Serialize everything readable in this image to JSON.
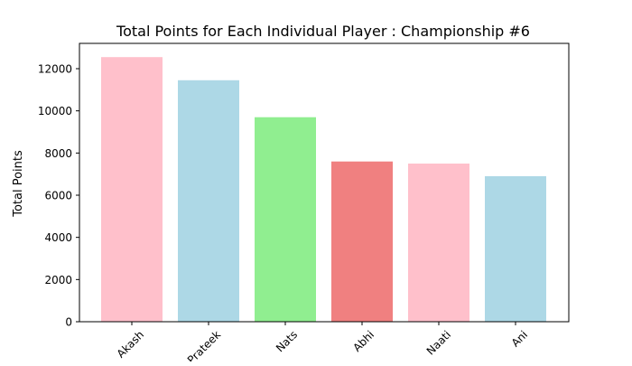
{
  "chart_data": {
    "type": "bar",
    "title": "Total Points for Each Individual Player : Championship #6",
    "xlabel": "",
    "ylabel": "Total Points",
    "categories": [
      "Akash",
      "Prateek",
      "Nats",
      "Abhi",
      "Naati",
      "Ani"
    ],
    "values": [
      12550,
      11450,
      9700,
      7600,
      7500,
      6900
    ],
    "bar_colors": [
      "#ffc0cb",
      "#add8e6",
      "#90ee90",
      "#f08080",
      "#ffc0cb",
      "#add8e6"
    ],
    "ylim": [
      0,
      13200
    ],
    "yticks": [
      0,
      2000,
      4000,
      6000,
      8000,
      10000,
      12000
    ],
    "grid": false,
    "legend": "none"
  }
}
